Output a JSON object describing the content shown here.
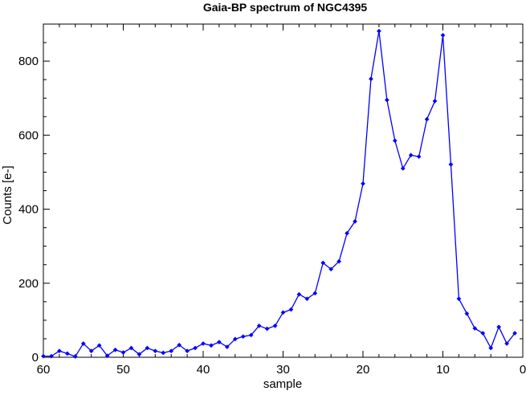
{
  "chart_data": {
    "type": "line",
    "title": "Gaia-BP spectrum of NGC4395",
    "xlabel": "sample",
    "ylabel": "Counts [e-]",
    "xlim": [
      60,
      0
    ],
    "ylim": [
      0,
      900
    ],
    "x_reversed": true,
    "grid": false,
    "legend": "none",
    "x_ticks": [
      60,
      50,
      40,
      30,
      20,
      10,
      0
    ],
    "y_ticks": [
      0,
      200,
      400,
      600,
      800
    ],
    "colors": {
      "series": "#0000ff",
      "axes": "#000000"
    },
    "series": [
      {
        "x": [
          60,
          59,
          58,
          57,
          56,
          55,
          54,
          53,
          52,
          51,
          50,
          49,
          48,
          47,
          46,
          45,
          44,
          43,
          42,
          41,
          40,
          39,
          38,
          37,
          36,
          35,
          34,
          33,
          32,
          31,
          30,
          29,
          28,
          27,
          26,
          25,
          24,
          23,
          22,
          21,
          20,
          19,
          18,
          17,
          16,
          15,
          14,
          13,
          12,
          11,
          10,
          9,
          8,
          7,
          6,
          5,
          4,
          3,
          2,
          1
        ],
        "y": [
          3,
          3,
          17,
          10,
          2,
          37,
          17,
          32,
          4,
          20,
          13,
          25,
          8,
          25,
          17,
          12,
          17,
          33,
          17,
          25,
          37,
          32,
          41,
          28,
          49,
          56,
          60,
          85,
          77,
          85,
          121,
          129,
          170,
          158,
          173,
          255,
          238,
          259,
          335,
          367,
          469,
          752,
          881,
          695,
          585,
          510,
          546,
          542,
          643,
          692,
          870,
          521,
          158,
          118,
          78,
          65,
          25,
          82,
          37,
          65
        ]
      }
    ]
  }
}
